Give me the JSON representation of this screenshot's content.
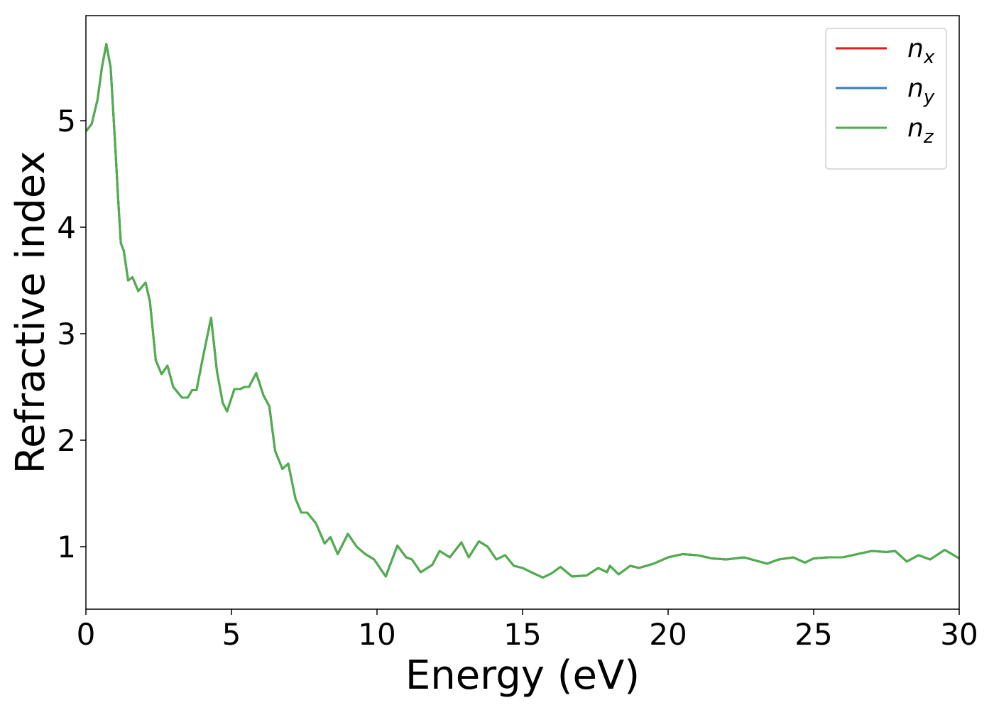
{
  "chart_data": {
    "type": "line",
    "xlabel": "Energy (eV)",
    "ylabel": "Refractive index",
    "x": [
      0,
      0.2,
      0.4,
      0.55,
      0.7,
      0.85,
      1.0,
      1.1,
      1.2,
      1.3,
      1.45,
      1.6,
      1.8,
      2.05,
      2.2,
      2.4,
      2.6,
      2.8,
      3.0,
      3.3,
      3.5,
      3.65,
      3.8,
      4.0,
      4.3,
      4.5,
      4.7,
      4.85,
      5.1,
      5.3,
      5.45,
      5.6,
      5.85,
      6.1,
      6.3,
      6.5,
      6.75,
      6.95,
      7.2,
      7.4,
      7.6,
      7.9,
      8.2,
      8.4,
      8.65,
      9.0,
      9.3,
      9.6,
      9.9,
      10.3,
      10.7,
      11.0,
      11.2,
      11.5,
      11.9,
      12.15,
      12.5,
      12.9,
      13.15,
      13.5,
      13.8,
      14.1,
      14.4,
      14.7,
      15.0,
      15.3,
      15.7,
      16.0,
      16.3,
      16.7,
      17.2,
      17.6,
      17.9,
      18.0,
      18.3,
      18.7,
      19.0,
      19.5,
      20.0,
      20.5,
      21.0,
      21.5,
      22.0,
      22.6,
      23.0,
      23.4,
      23.8,
      24.3,
      24.7,
      25.0,
      25.5,
      26.0,
      26.5,
      27.0,
      27.5,
      27.8,
      28.2,
      28.6,
      29.0,
      29.5,
      30.0
    ],
    "series": [
      {
        "name": "nx",
        "color": "#e41a1c",
        "values": [
          4.9,
          4.97,
          5.2,
          5.5,
          5.72,
          5.5,
          4.8,
          4.3,
          3.85,
          3.78,
          3.5,
          3.53,
          3.4,
          3.48,
          3.3,
          2.75,
          2.62,
          2.7,
          2.5,
          2.4,
          2.4,
          2.47,
          2.47,
          2.75,
          3.15,
          2.65,
          2.35,
          2.27,
          2.48,
          2.48,
          2.5,
          2.5,
          2.63,
          2.42,
          2.32,
          1.9,
          1.73,
          1.78,
          1.45,
          1.32,
          1.32,
          1.22,
          1.03,
          1.09,
          0.93,
          1.12,
          1.0,
          0.93,
          0.88,
          0.72,
          1.01,
          0.9,
          0.88,
          0.76,
          0.83,
          0.96,
          0.9,
          1.04,
          0.9,
          1.05,
          1.0,
          0.88,
          0.92,
          0.82,
          0.8,
          0.76,
          0.71,
          0.75,
          0.81,
          0.72,
          0.73,
          0.8,
          0.76,
          0.82,
          0.74,
          0.82,
          0.8,
          0.84,
          0.9,
          0.93,
          0.92,
          0.89,
          0.88,
          0.9,
          0.87,
          0.84,
          0.88,
          0.9,
          0.85,
          0.89,
          0.9,
          0.9,
          0.93,
          0.96,
          0.95,
          0.96,
          0.86,
          0.92,
          0.88,
          0.97,
          0.89
        ]
      },
      {
        "name": "ny",
        "color": "#377eb8",
        "values": [
          4.9,
          4.97,
          5.2,
          5.5,
          5.72,
          5.5,
          4.8,
          4.3,
          3.85,
          3.78,
          3.5,
          3.53,
          3.4,
          3.48,
          3.3,
          2.75,
          2.62,
          2.7,
          2.5,
          2.4,
          2.4,
          2.47,
          2.47,
          2.75,
          3.15,
          2.65,
          2.35,
          2.27,
          2.48,
          2.48,
          2.5,
          2.5,
          2.63,
          2.42,
          2.32,
          1.9,
          1.73,
          1.78,
          1.45,
          1.32,
          1.32,
          1.22,
          1.03,
          1.09,
          0.93,
          1.12,
          1.0,
          0.93,
          0.88,
          0.72,
          1.01,
          0.9,
          0.88,
          0.76,
          0.83,
          0.96,
          0.9,
          1.04,
          0.9,
          1.05,
          1.0,
          0.88,
          0.92,
          0.82,
          0.8,
          0.76,
          0.71,
          0.75,
          0.81,
          0.72,
          0.73,
          0.8,
          0.76,
          0.82,
          0.74,
          0.82,
          0.8,
          0.84,
          0.9,
          0.93,
          0.92,
          0.89,
          0.88,
          0.9,
          0.87,
          0.84,
          0.88,
          0.9,
          0.85,
          0.89,
          0.9,
          0.9,
          0.93,
          0.96,
          0.95,
          0.96,
          0.86,
          0.92,
          0.88,
          0.97,
          0.89
        ]
      },
      {
        "name": "nz",
        "color": "#4daf4a",
        "values": [
          4.9,
          4.97,
          5.2,
          5.5,
          5.72,
          5.5,
          4.8,
          4.3,
          3.85,
          3.78,
          3.5,
          3.53,
          3.4,
          3.48,
          3.3,
          2.75,
          2.62,
          2.7,
          2.5,
          2.4,
          2.4,
          2.47,
          2.47,
          2.75,
          3.15,
          2.65,
          2.35,
          2.27,
          2.48,
          2.48,
          2.5,
          2.5,
          2.63,
          2.42,
          2.32,
          1.9,
          1.73,
          1.78,
          1.45,
          1.32,
          1.32,
          1.22,
          1.03,
          1.09,
          0.93,
          1.12,
          1.0,
          0.93,
          0.88,
          0.72,
          1.01,
          0.9,
          0.88,
          0.76,
          0.83,
          0.96,
          0.9,
          1.04,
          0.9,
          1.05,
          1.0,
          0.88,
          0.92,
          0.82,
          0.8,
          0.76,
          0.71,
          0.75,
          0.81,
          0.72,
          0.73,
          0.8,
          0.76,
          0.82,
          0.74,
          0.82,
          0.8,
          0.84,
          0.9,
          0.93,
          0.92,
          0.89,
          0.88,
          0.9,
          0.87,
          0.84,
          0.88,
          0.9,
          0.85,
          0.89,
          0.9,
          0.9,
          0.93,
          0.96,
          0.95,
          0.96,
          0.86,
          0.92,
          0.88,
          0.97,
          0.89
        ]
      }
    ],
    "xlim": [
      0,
      30
    ],
    "xticks": [
      0,
      5,
      10,
      15,
      20,
      25,
      30
    ],
    "ylim": [
      0.413,
      5.987
    ],
    "yticks": [
      1,
      2,
      3,
      4,
      5
    ],
    "grid": false,
    "legend": "upper right"
  }
}
